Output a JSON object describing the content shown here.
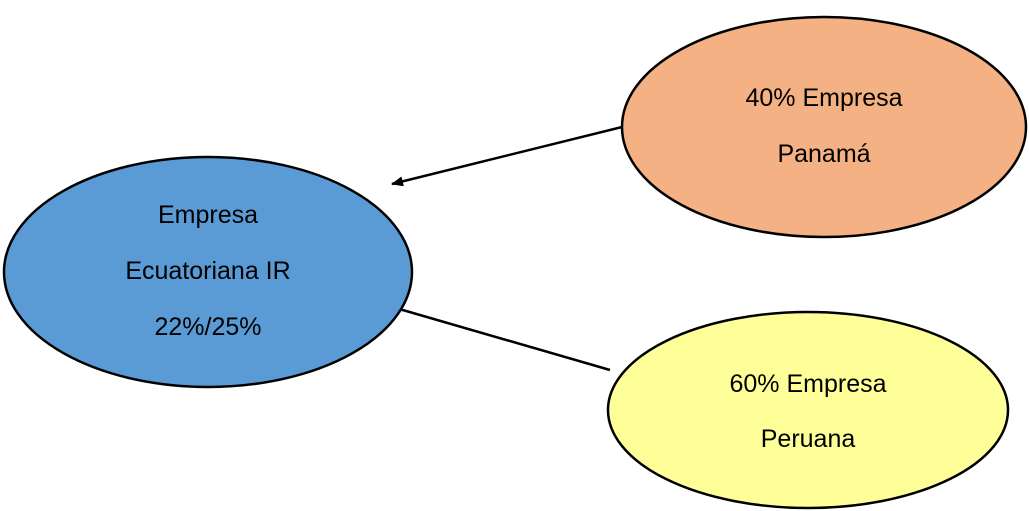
{
  "nodes": {
    "ecuador": {
      "lines": [
        "Empresa",
        "Ecuatoriana IR",
        "22%/25%"
      ],
      "fill": "#5b9bd5"
    },
    "panama": {
      "lines": [
        "40% Empresa",
        "Panamá"
      ],
      "fill": "#f4b183"
    },
    "peru": {
      "lines": [
        "60% Empresa",
        "Peruana"
      ],
      "fill": "#ffff99"
    }
  },
  "edges": [
    {
      "from": "panama",
      "to": "ecuador"
    },
    {
      "from": "peru",
      "to": "ecuador"
    }
  ]
}
